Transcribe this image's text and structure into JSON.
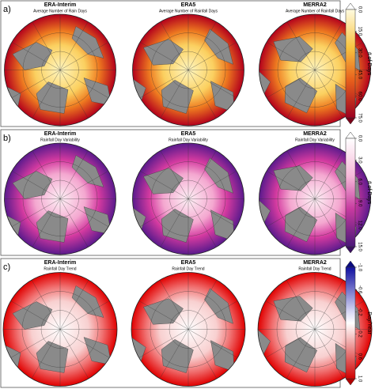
{
  "panels": [
    {
      "label": "a)",
      "maps": [
        {
          "title": "ERA-Interim",
          "subtitle": "Average Number of Rain Days"
        },
        {
          "title": "ERA5",
          "subtitle": "Average Number of Rainfall Days"
        },
        {
          "title": "MERRA2",
          "subtitle": "Average Number of Rainfall Days"
        }
      ],
      "colorbar": {
        "label": "# of Days",
        "lim": [
          0,
          75
        ],
        "ticks": [
          {
            "value": 0,
            "label": "0.0"
          },
          {
            "value": 15,
            "label": "15.0"
          },
          {
            "value": 30,
            "label": "30.0"
          },
          {
            "value": 45,
            "label": "45.0"
          },
          {
            "value": 60,
            "label": "60.0"
          },
          {
            "value": 75,
            "label": "75.0"
          }
        ]
      }
    },
    {
      "label": "b)",
      "maps": [
        {
          "title": "ERA-Interim",
          "subtitle": "Rainfall Day Variability"
        },
        {
          "title": "ERA5",
          "subtitle": "Rainfall Day Variability"
        },
        {
          "title": "MERRA2",
          "subtitle": "Rainfall Day Variability"
        }
      ],
      "colorbar": {
        "label": "# of Days",
        "lim": [
          0,
          15
        ],
        "ticks": [
          {
            "value": 0,
            "label": "0.0"
          },
          {
            "value": 3,
            "label": "3.0"
          },
          {
            "value": 6,
            "label": "6.0"
          },
          {
            "value": 9,
            "label": "9.0"
          },
          {
            "value": 12,
            "label": "12.0"
          },
          {
            "value": 15,
            "label": "15.0"
          }
        ]
      }
    },
    {
      "label": "c)",
      "maps": [
        {
          "title": "ERA-Interim",
          "subtitle": "Rainfall Day Trend"
        },
        {
          "title": "ERA5",
          "subtitle": "Rainfall Day Trend"
        },
        {
          "title": "MERRA2",
          "subtitle": "Rainfall Day Trend"
        }
      ],
      "colorbar": {
        "label": "Day/Year",
        "lim": [
          -1,
          1
        ],
        "ticks": [
          {
            "value": -1,
            "label": "-1.0"
          },
          {
            "value": -0.6,
            "label": "-0.6"
          },
          {
            "value": -0.2,
            "label": "-0.2"
          },
          {
            "value": 0.2,
            "label": "0.2"
          },
          {
            "value": 0.6,
            "label": "0.6"
          },
          {
            "value": 1,
            "label": "1.0"
          }
        ]
      }
    }
  ]
}
